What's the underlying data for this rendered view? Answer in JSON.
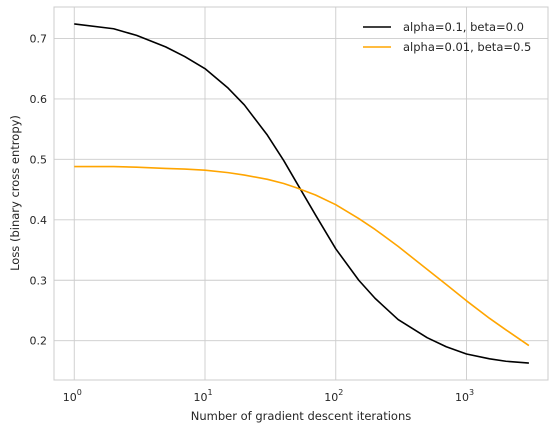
{
  "chart_data": {
    "type": "line",
    "xscale": "log",
    "xlabel": "Number of gradient descent iterations",
    "ylabel": "Loss (binary cross entropy)",
    "xlim": [
      0.7,
      4200
    ],
    "ylim": [
      0.135,
      0.752
    ],
    "xticks": [
      {
        "value": 1,
        "base": "10",
        "exp": "0"
      },
      {
        "value": 10,
        "base": "10",
        "exp": "1"
      },
      {
        "value": 100,
        "base": "10",
        "exp": "2"
      },
      {
        "value": 1000,
        "base": "10",
        "exp": "3"
      }
    ],
    "yticks": [
      {
        "value": 0.2,
        "label": "0.2"
      },
      {
        "value": 0.3,
        "label": "0.3"
      },
      {
        "value": 0.4,
        "label": "0.4"
      },
      {
        "value": 0.5,
        "label": "0.5"
      },
      {
        "value": 0.6,
        "label": "0.6"
      },
      {
        "value": 0.7,
        "label": "0.7"
      }
    ],
    "grid": true,
    "legend_position": "top-right",
    "series": [
      {
        "name": "alpha=0.1, beta=0.0",
        "color": "#000000",
        "x": [
          1,
          2,
          3,
          5,
          7,
          10,
          15,
          20,
          30,
          40,
          50,
          70,
          100,
          150,
          200,
          300,
          500,
          700,
          1000,
          1500,
          2000,
          3000
        ],
        "y": [
          0.724,
          0.716,
          0.705,
          0.686,
          0.67,
          0.65,
          0.618,
          0.59,
          0.54,
          0.498,
          0.462,
          0.408,
          0.352,
          0.3,
          0.27,
          0.235,
          0.205,
          0.19,
          0.178,
          0.17,
          0.166,
          0.163
        ]
      },
      {
        "name": "alpha=0.01, beta=0.5",
        "color": "#ffa500",
        "x": [
          1,
          2,
          3,
          5,
          7,
          10,
          15,
          20,
          30,
          40,
          50,
          70,
          100,
          150,
          200,
          300,
          500,
          700,
          1000,
          1500,
          2000,
          3000
        ],
        "y": [
          0.488,
          0.488,
          0.487,
          0.485,
          0.484,
          0.482,
          0.478,
          0.474,
          0.467,
          0.46,
          0.453,
          0.441,
          0.425,
          0.402,
          0.384,
          0.356,
          0.318,
          0.293,
          0.266,
          0.237,
          0.218,
          0.192
        ]
      }
    ]
  }
}
